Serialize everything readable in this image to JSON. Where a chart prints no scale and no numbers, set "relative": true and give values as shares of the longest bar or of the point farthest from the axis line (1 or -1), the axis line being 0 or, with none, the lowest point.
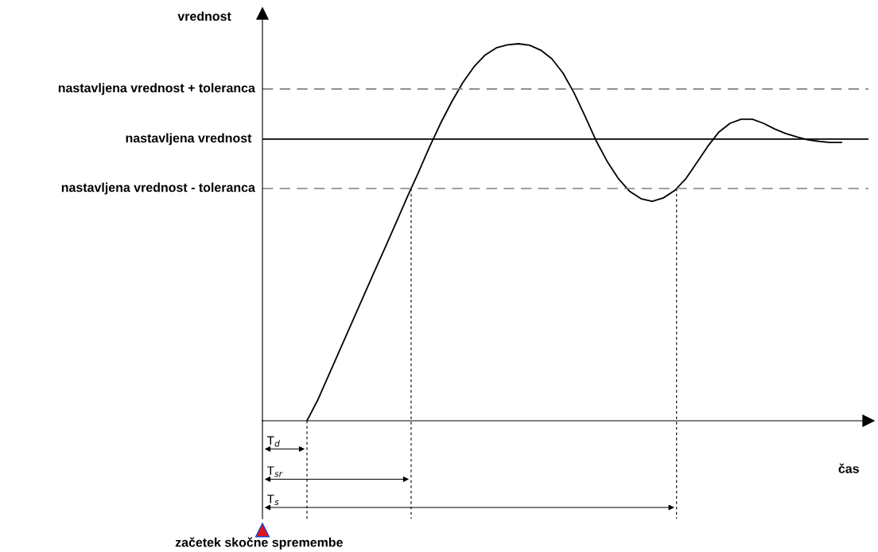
{
  "chart_data": {
    "type": "line",
    "relative": true,
    "xlabel": "čas",
    "ylabel": "vrednost",
    "categories": [
      null,
      null,
      null,
      null,
      null,
      null,
      null,
      null,
      null,
      null,
      null,
      null,
      null,
      null,
      null,
      null,
      null,
      null,
      null,
      null,
      null,
      null,
      null,
      null,
      null,
      null,
      null,
      null,
      null,
      null,
      null,
      null,
      null,
      null,
      null,
      null,
      null,
      null,
      null,
      null,
      null,
      null,
      null,
      null,
      null,
      null,
      null,
      null,
      null,
      null,
      null,
      null,
      null
    ],
    "series": [
      {
        "color": "#000000",
        "values": [
          null,
          null,
          null,
          null,
          0,
          0.057,
          0.124,
          0.191,
          0.258,
          0.325,
          0.392,
          0.458,
          0.525,
          0.593,
          0.658,
          0.726,
          0.789,
          0.846,
          0.897,
          0.939,
          0.97,
          0.989,
          0.997,
          1.0,
          0.996,
          0.983,
          0.96,
          0.922,
          0.869,
          0.806,
          0.741,
          0.686,
          0.641,
          0.608,
          0.589,
          0.582,
          0.591,
          0.61,
          0.641,
          0.684,
          0.728,
          0.766,
          0.789,
          0.8,
          0.8,
          0.789,
          0.774,
          0.762,
          0.753,
          0.745,
          0.741,
          0.738,
          0.738
        ]
      }
    ],
    "ref_lines": [
      {
        "axis": "y",
        "value": 0.88,
        "label": "nastavljena vrednost + toleranca",
        "color": "#808080",
        "line_style": "dashed"
      },
      {
        "axis": "y",
        "value": 0.747,
        "label": "nastavljena vrednost ",
        "color": "#000000",
        "line_style": "solid"
      },
      {
        "axis": "y",
        "value": 0.616,
        "label": "nastavljena vrednost - toleranca",
        "color": "#808080",
        "line_style": "dashed"
      }
    ],
    "annotations": [
      "T$_{d}$",
      "T$_{sr}$",
      "T$_{s}$",
      "začetek skočne spremembe"
    ],
    "grid": false,
    "marker": "none",
    "line_style": "solid"
  }
}
